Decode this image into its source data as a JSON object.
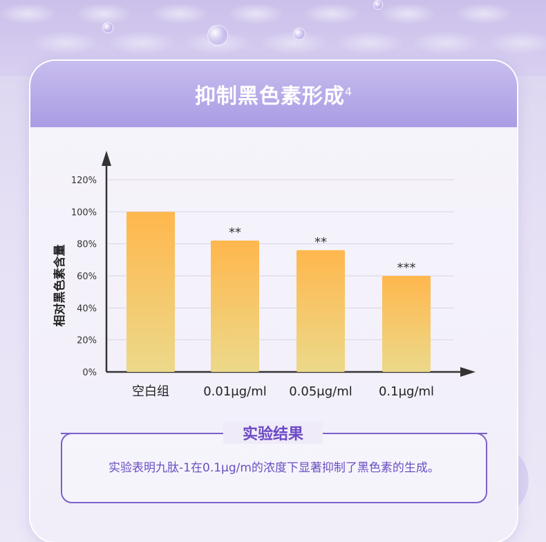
{
  "header": {
    "title": "抑制黑色素形成",
    "superscript": "4"
  },
  "chart_data": {
    "type": "bar",
    "categories": [
      "空白组",
      "0.01μg/ml",
      "0.05μg/ml",
      "0.1μg/ml"
    ],
    "values": [
      100,
      82,
      76,
      60
    ],
    "significance": [
      "",
      "**",
      "**",
      "***"
    ],
    "ylabel": "相对黑色素含量",
    "xlabel": "",
    "ylim": [
      0,
      120
    ],
    "yticks": [
      "0%",
      "20%",
      "40%",
      "60%",
      "80%",
      "100%",
      "120%"
    ],
    "ytick_values": [
      0,
      20,
      40,
      60,
      80,
      100,
      120
    ],
    "grid": true,
    "bar_color_top": "#ffb74d",
    "bar_color_bottom": "#ecd98a"
  },
  "result": {
    "title": "实验结果",
    "text": "实验表明九肽-1在0.1μg/m的浓度下显著抑制了黑色素的生成。"
  },
  "colors": {
    "accent": "#7c5fc9",
    "header": "#aa9ce4",
    "axis": "#333333"
  }
}
